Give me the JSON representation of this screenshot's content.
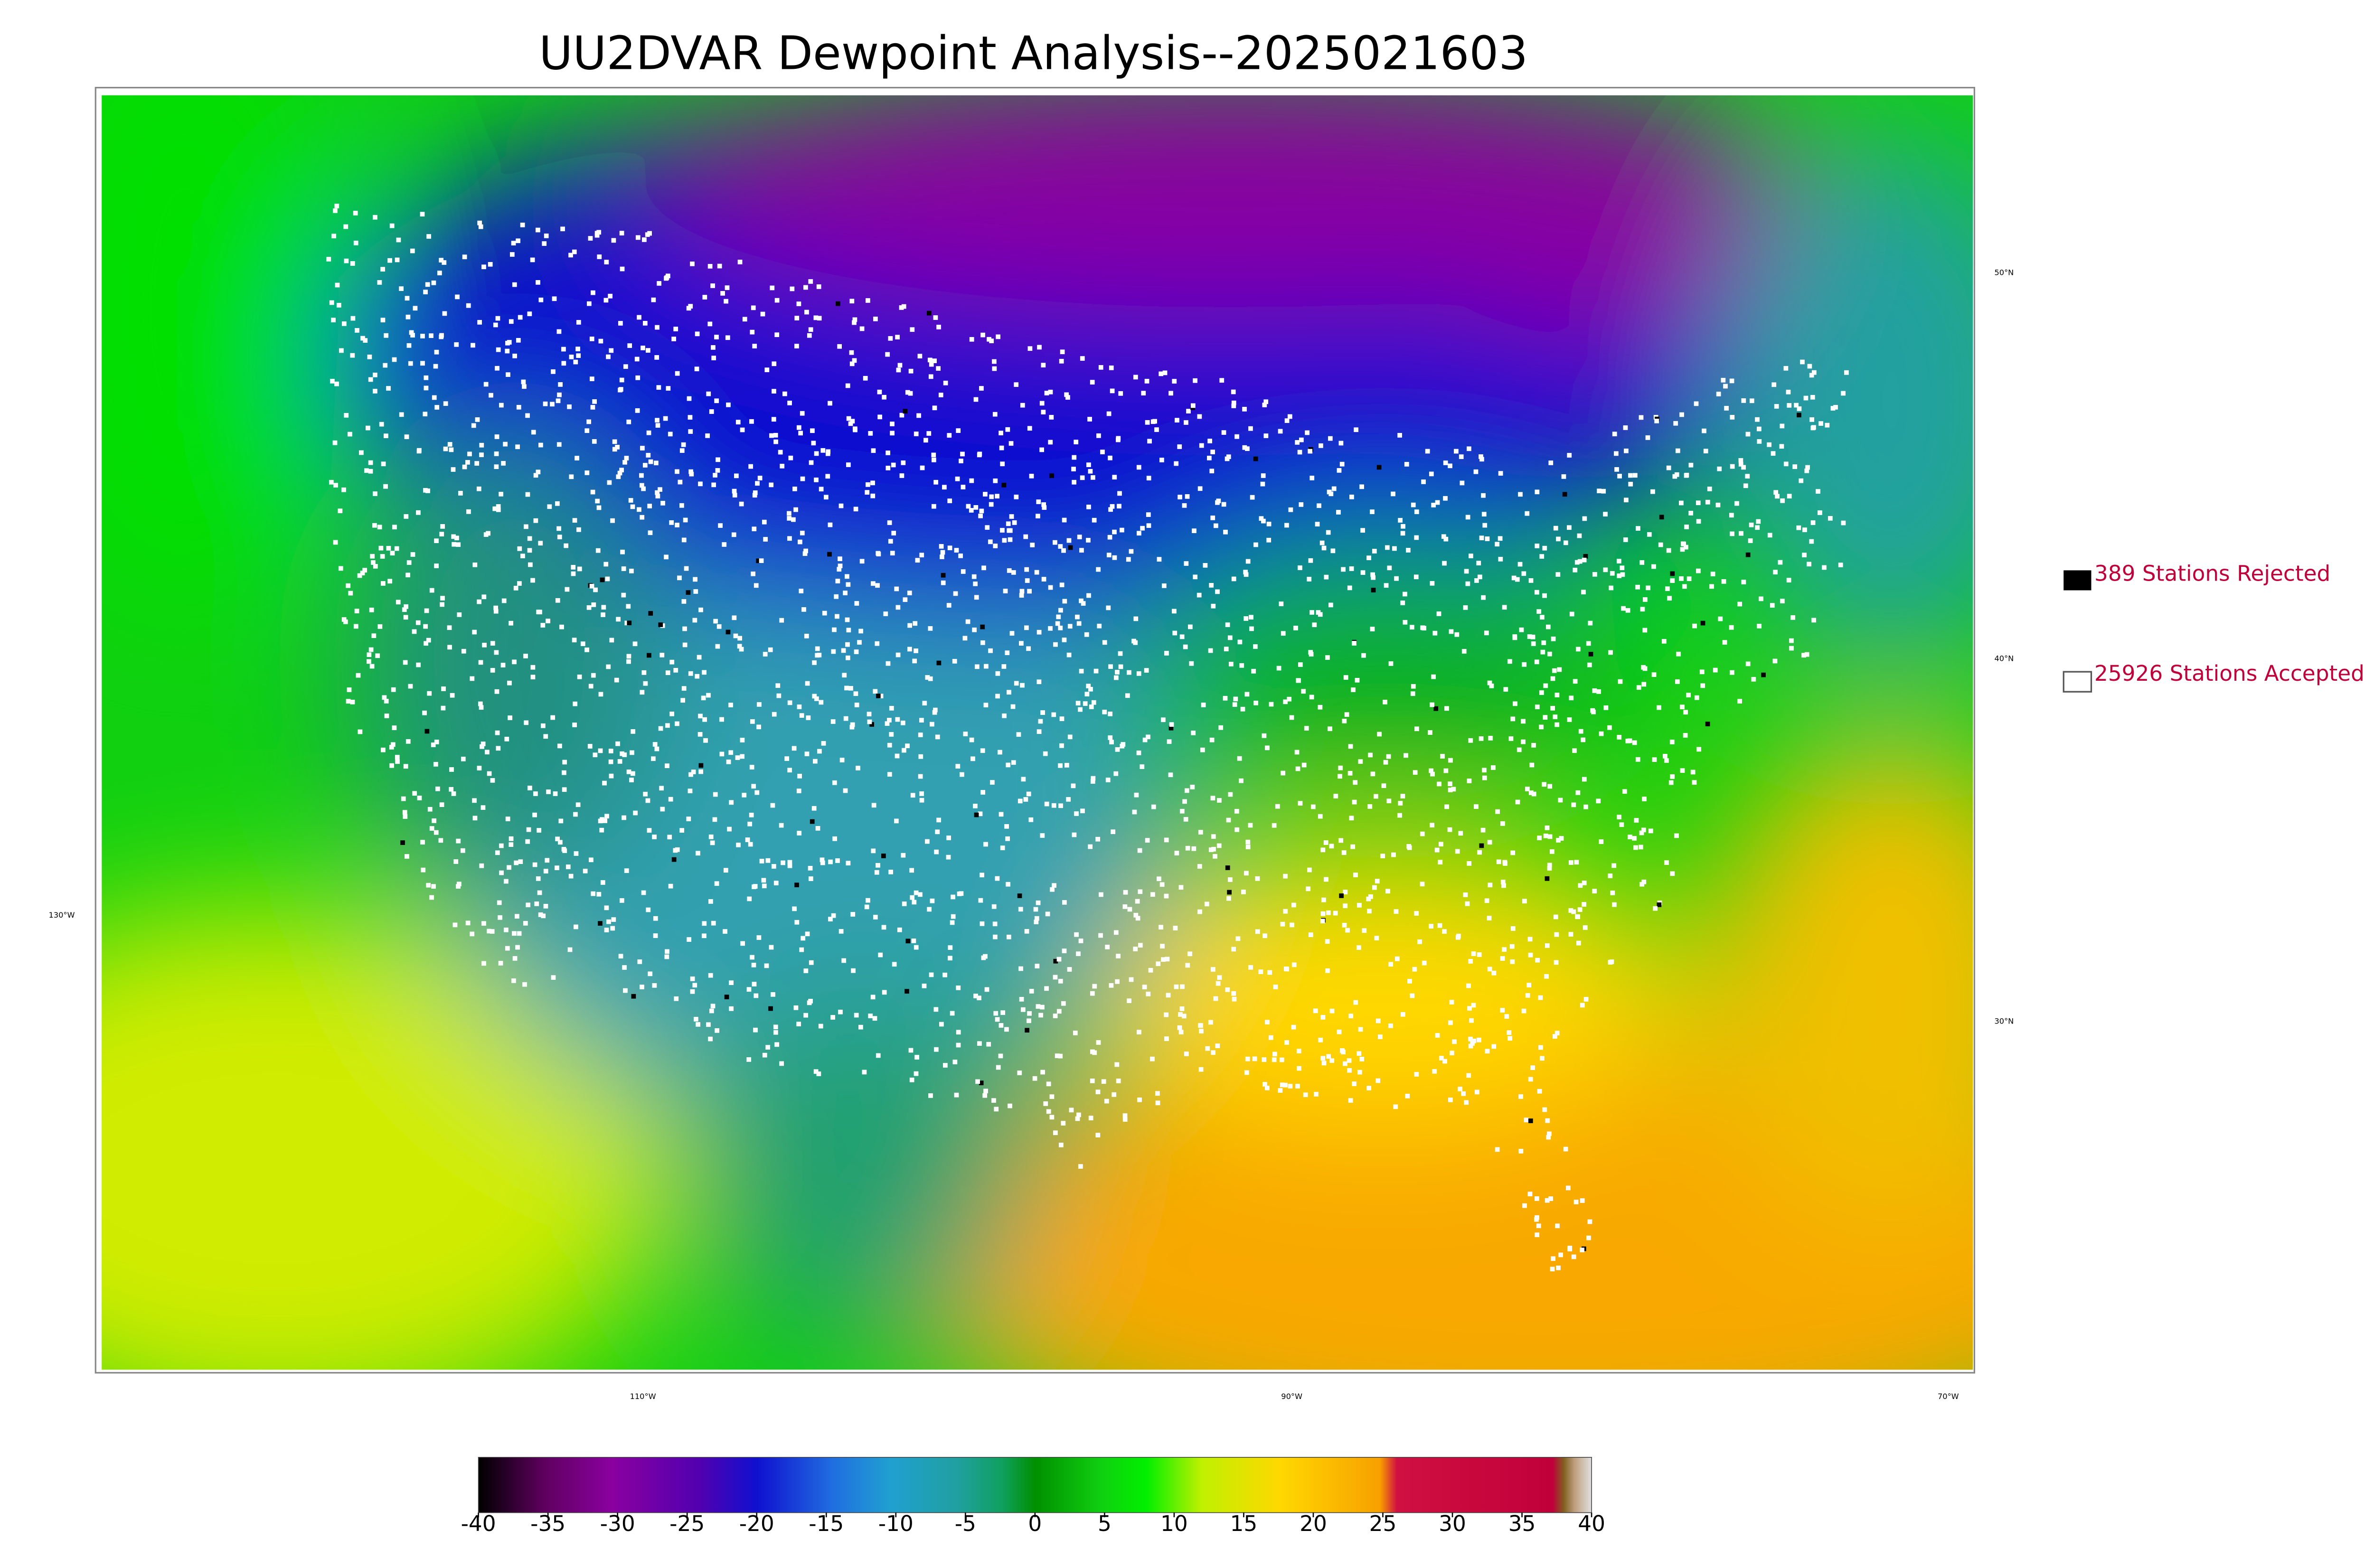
{
  "title": "UU2DVAR Dewpoint Analysis--2025021603",
  "legend": [
    {
      "label": "389 Stations Rejected"
    },
    {
      "label": "25926 Stations Accepted"
    }
  ],
  "map": {
    "longitude_labels": [
      "130°W",
      "110°W",
      "90°W",
      "70°W"
    ],
    "latitude_labels": [
      "50°N",
      "40°N",
      "30°N"
    ]
  },
  "colorbar": {
    "lim": [
      -40,
      40
    ],
    "ticks": [
      -40,
      -35,
      -30,
      -25,
      -20,
      -15,
      -10,
      -5,
      0,
      5,
      10,
      15,
      20,
      25,
      30,
      35,
      40
    ]
  }
}
